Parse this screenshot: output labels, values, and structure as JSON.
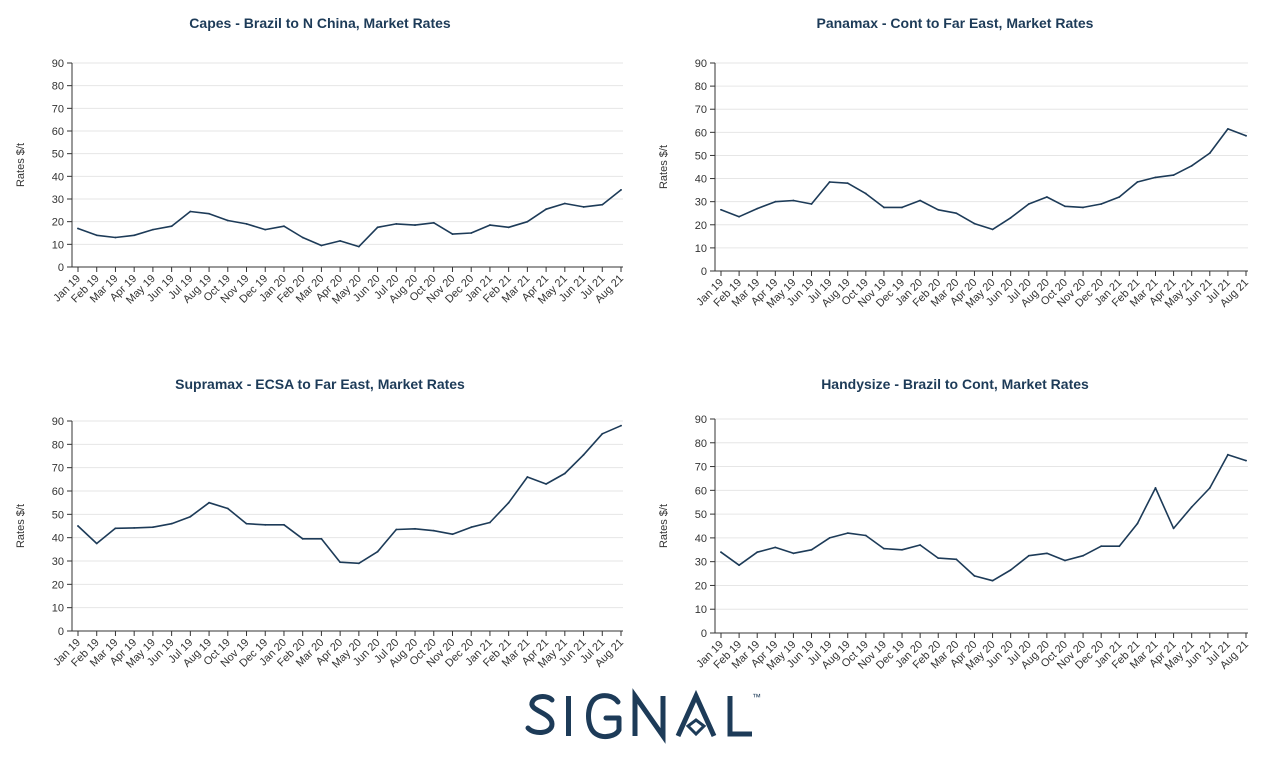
{
  "colors": {
    "line": "#1d3b58",
    "title": "#1d3b58",
    "grid": "#e6e6e6",
    "axis": "#333333",
    "brand": "#1d3b58"
  },
  "brand": {
    "name": "SIGNAL",
    "tm": "™"
  },
  "chart_data": [
    {
      "type": "line",
      "title": "Capes - Brazil to N China, Market Rates",
      "ylabel": "Rates $/t",
      "ylim": [
        0,
        90
      ],
      "yticks": [
        0,
        10,
        20,
        30,
        40,
        50,
        60,
        70,
        80,
        90
      ],
      "grid": true,
      "categories": [
        "Jan 19",
        "Feb 19",
        "Mar 19",
        "Apr 19",
        "May 19",
        "Jun 19",
        "Jul 19",
        "Aug 19",
        "Oct 19",
        "Nov 19",
        "Dec 19",
        "Jan 20",
        "Feb 20",
        "Mar 20",
        "Apr 20",
        "May 20",
        "Jun 20",
        "Jul 20",
        "Aug 20",
        "Oct 20",
        "Nov 20",
        "Dec 20",
        "Jan 21",
        "Feb 21",
        "Mar 21",
        "Apr 21",
        "May 21",
        "Jun 21",
        "Jul 21",
        "Aug 21"
      ],
      "series": [
        {
          "values": [
            17,
            14,
            13,
            14,
            16.5,
            18,
            24.5,
            23.5,
            20.5,
            19,
            16.5,
            18,
            13,
            9.5,
            11.5,
            9,
            17.5,
            19,
            18.5,
            19.5,
            14.5,
            15,
            18.5,
            17.5,
            20,
            25.5,
            28,
            26.5,
            27.5,
            34
          ]
        }
      ]
    },
    {
      "type": "line",
      "title": "Panamax - Cont to Far East, Market Rates",
      "ylabel": "Rates $/t",
      "ylim": [
        0,
        90
      ],
      "yticks": [
        0,
        10,
        20,
        30,
        40,
        50,
        60,
        70,
        80,
        90
      ],
      "grid": true,
      "categories": [
        "Jan 19",
        "Feb 19",
        "Mar 19",
        "Apr 19",
        "May 19",
        "Jun 19",
        "Jul 19",
        "Aug 19",
        "Oct 19",
        "Nov 19",
        "Dec 19",
        "Jan 20",
        "Feb 20",
        "Mar 20",
        "Apr 20",
        "May 20",
        "Jun 20",
        "Jul 20",
        "Aug 20",
        "Oct 20",
        "Nov 20",
        "Dec 20",
        "Jan 21",
        "Feb 21",
        "Mar 21",
        "Apr 21",
        "May 21",
        "Jun 21",
        "Jul 21",
        "Aug 21"
      ],
      "series": [
        {
          "values": [
            26.5,
            23.5,
            27,
            30,
            30.5,
            29,
            38.5,
            38,
            33.5,
            27.5,
            27.5,
            30.5,
            26.5,
            25,
            20.5,
            18,
            23,
            29,
            32,
            28,
            27.5,
            29,
            32,
            38.5,
            40.5,
            41.5,
            45.5,
            51,
            61.5,
            58.5
          ]
        }
      ]
    },
    {
      "type": "line",
      "title": "Supramax - ECSA to Far East, Market Rates",
      "ylabel": "Rates $/t",
      "ylim": [
        0,
        90
      ],
      "yticks": [
        0,
        10,
        20,
        30,
        40,
        50,
        60,
        70,
        80,
        90
      ],
      "grid": true,
      "categories": [
        "Jan 19",
        "Feb 19",
        "Mar 19",
        "Apr 19",
        "May 19",
        "Jun 19",
        "Jul 19",
        "Aug 19",
        "Oct 19",
        "Nov 19",
        "Dec 19",
        "Jan 20",
        "Feb 20",
        "Mar 20",
        "Apr 20",
        "May 20",
        "Jun 20",
        "Jul 20",
        "Aug 20",
        "Oct 20",
        "Nov 20",
        "Dec 20",
        "Jan 21",
        "Feb 21",
        "Mar 21",
        "Apr 21",
        "May 21",
        "Jun 21",
        "Jul 21",
        "Aug 21"
      ],
      "series": [
        {
          "values": [
            45,
            37.5,
            44,
            44.2,
            44.5,
            46,
            49,
            55,
            52.5,
            46,
            45.5,
            45.5,
            39.5,
            39.5,
            29.5,
            29,
            34,
            43.5,
            43.8,
            43,
            41.5,
            44.5,
            46.5,
            55,
            66,
            63,
            67.5,
            75.5,
            84.5,
            88
          ]
        }
      ]
    },
    {
      "type": "line",
      "title": "Handysize - Brazil to Cont, Market Rates",
      "ylabel": "Rates $/t",
      "ylim": [
        0,
        90
      ],
      "yticks": [
        0,
        10,
        20,
        30,
        40,
        50,
        60,
        70,
        80,
        90
      ],
      "grid": true,
      "categories": [
        "Jan 19",
        "Feb 19",
        "Mar 19",
        "Apr 19",
        "May 19",
        "Jun 19",
        "Jul 19",
        "Aug 19",
        "Oct 19",
        "Nov 19",
        "Dec 19",
        "Jan 20",
        "Feb 20",
        "Mar 20",
        "Apr 20",
        "May 20",
        "Jun 20",
        "Jul 20",
        "Aug 20",
        "Oct 20",
        "Nov 20",
        "Dec 20",
        "Jan 21",
        "Feb 21",
        "Mar 21",
        "Apr 21",
        "May 21",
        "Jun 21",
        "Jul 21",
        "Aug 21"
      ],
      "series": [
        {
          "values": [
            34,
            28.5,
            34,
            36,
            33.5,
            35,
            40,
            42,
            41,
            35.5,
            35,
            37,
            31.5,
            31,
            24,
            22,
            26.5,
            32.5,
            33.5,
            30.5,
            32.5,
            36.5,
            36.5,
            46,
            61,
            44,
            53,
            61,
            75,
            72.5
          ]
        }
      ]
    }
  ]
}
